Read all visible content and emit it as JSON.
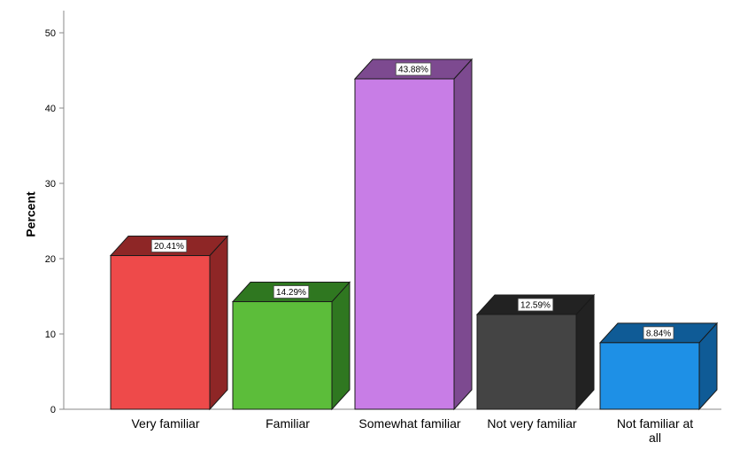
{
  "chart_data": {
    "type": "bar",
    "ylabel": "Percent",
    "xlabel": "",
    "ylim": [
      0,
      50
    ],
    "yticks": [
      0,
      10,
      20,
      30,
      40,
      50
    ],
    "categories": [
      "Very familiar",
      "Familiar",
      "Somewhat familiar",
      "Not very familiar",
      "Not familiar at all"
    ],
    "values": [
      20.41,
      14.29,
      43.88,
      12.59,
      8.84
    ],
    "data_labels": [
      "20.41%",
      "14.29%",
      "43.88%",
      "12.59%",
      "8.84%"
    ],
    "colors": [
      "#ee4a4a",
      "#5cbd3a",
      "#c87de6",
      "#444444",
      "#1e90e6"
    ],
    "side_colors": [
      "#8e2626",
      "#2f7720",
      "#7d4a90",
      "#222222",
      "#0f5b96"
    ],
    "grid": false,
    "legend": "none"
  }
}
